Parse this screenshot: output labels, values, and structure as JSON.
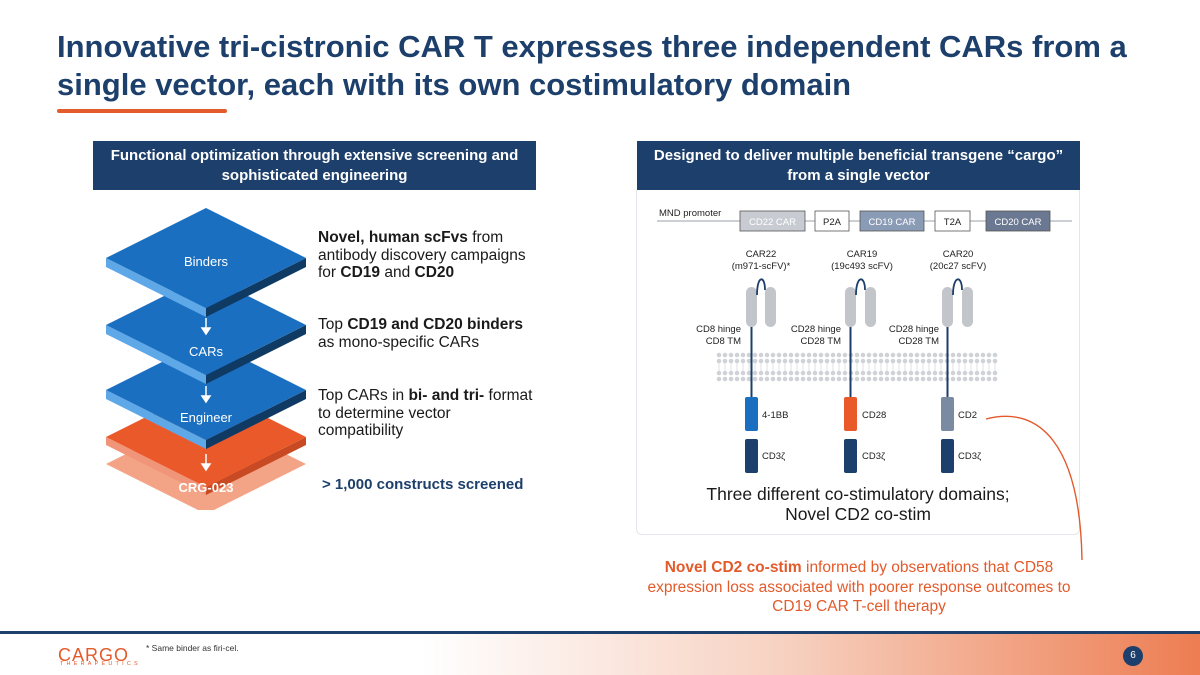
{
  "title": "Innovative tri-cistronic CAR T expresses three independent CARs from a single vector, each with its own costimulatory domain",
  "left_panel": {
    "header": "Functional optimization through extensive screening and sophisticated engineering",
    "layers": [
      "Binders",
      "CARs",
      "Engineer",
      "CRG-023"
    ],
    "desc1": {
      "b1": "Novel, human scFvs",
      "t1": " from antibody discovery campaigns for ",
      "b2": "CD19",
      "t2": " and ",
      "b3": "CD20"
    },
    "desc2": {
      "t1": "Top ",
      "b1": "CD19 and CD20 binders",
      "t2": " as mono-specific CARs"
    },
    "desc3": {
      "t1": "Top CARs in ",
      "b1": "bi- and tri-",
      "t2": " format to determine vector compatibility"
    },
    "constructs": "> 1,000 constructs screened"
  },
  "right_panel": {
    "header": "Designed to deliver multiple beneficial transgene “cargo” from a single vector",
    "promoter": "MND promoter",
    "vector": [
      "CD22 CAR",
      "P2A",
      "CD19 CAR",
      "T2A",
      "CD20 CAR"
    ],
    "cars": [
      {
        "name": "CAR22",
        "scfv": "(m971-scFV)*",
        "hinge": "CD8 hinge",
        "tm": "CD8 TM",
        "costim": "4-1BB",
        "signal": "CD3ζ",
        "color": "#1a6fc0"
      },
      {
        "name": "CAR19",
        "scfv": "(19c493 scFV)",
        "hinge": "CD28 hinge",
        "tm": "CD28 TM",
        "costim": "CD28",
        "signal": "CD3ζ",
        "color": "#e9592a"
      },
      {
        "name": "CAR20",
        "scfv": "(20c27 scFV)",
        "hinge": "CD28 hinge",
        "tm": "CD28 TM",
        "costim": "CD2",
        "signal": "CD3ζ",
        "color": "#7b8aa3"
      }
    ],
    "caption": "Three different co-stimulatory domains; Novel CD2 co-stim"
  },
  "note": {
    "bold": "Novel CD2 co-stim",
    "text": " informed by observations that CD58 expression loss associated with poorer response outcomes to CD19 CAR T-cell therapy"
  },
  "footer": {
    "logo": "CARGO",
    "logo_sub": "THERAPEUTICS",
    "footnote": "* Same binder as firi-cel.",
    "page": "6"
  },
  "colors": {
    "navy": "#1d3f6b",
    "orange": "#e35a2b",
    "blue": "#1a6fc0"
  }
}
